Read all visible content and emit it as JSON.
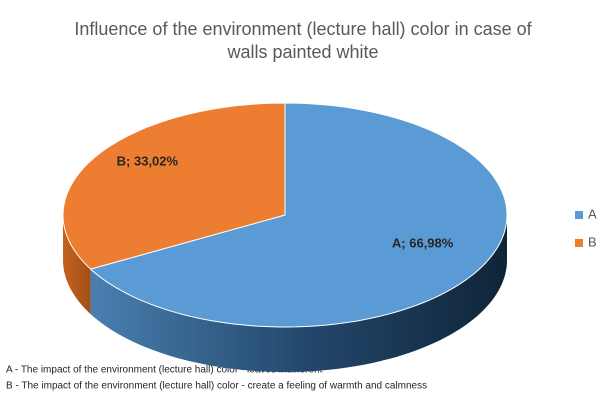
{
  "chart_data": {
    "type": "pie3d",
    "title": [
      "Influence of the environment (lecture hall) color in case of",
      "walls painted white"
    ],
    "categories": [
      "A",
      "B"
    ],
    "values": [
      66.98,
      33.02
    ],
    "value_labels": [
      "A; 66,98%",
      "B; 33,02%"
    ],
    "colors": [
      "#5b9bd5",
      "#ed7d31"
    ],
    "legend": "right",
    "annotations": [
      "A - The impact of the environment (lecture hall) color -  leaves indifferent",
      "B - The impact of the environment (lecture hall) color -  create a feeling of warmth and calmness"
    ]
  }
}
